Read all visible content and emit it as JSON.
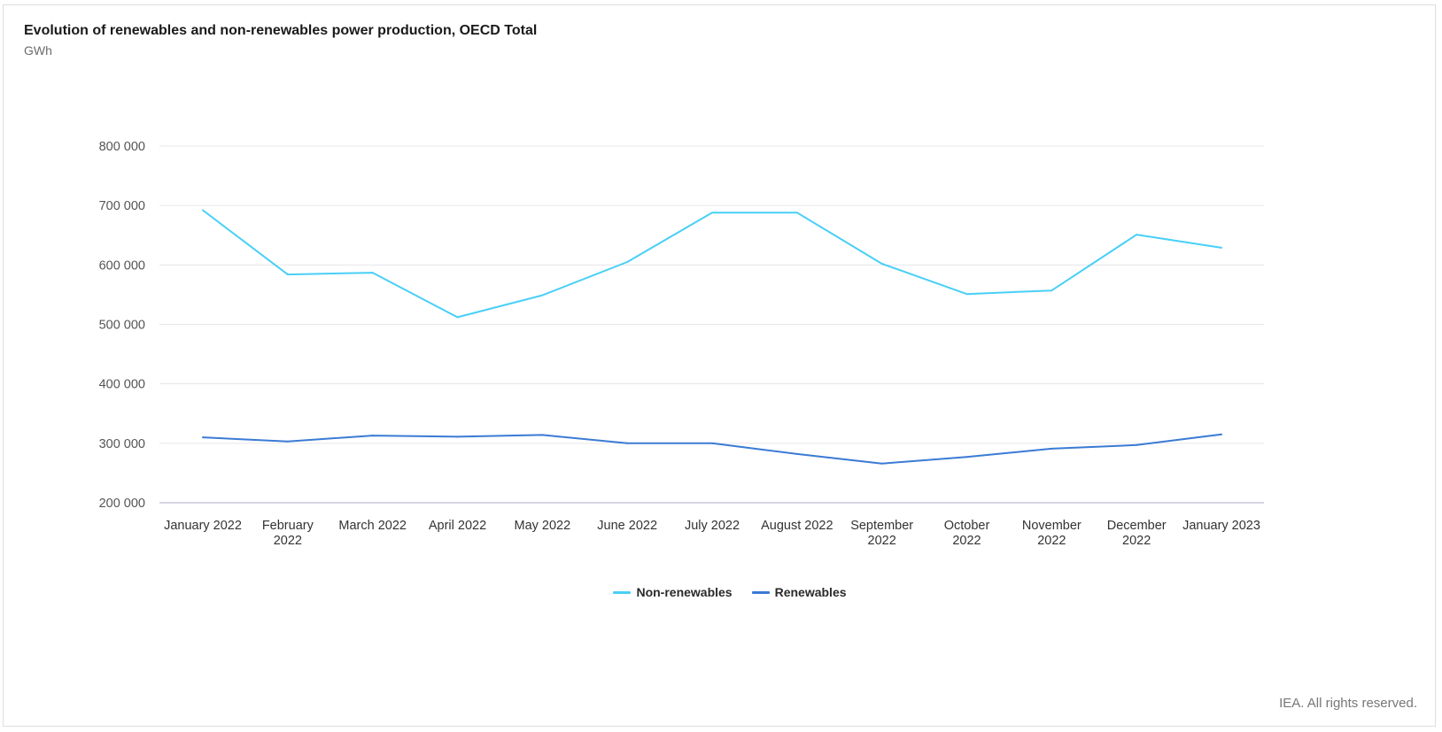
{
  "header": {
    "title": "Evolution of renewables and non-renewables power production, OECD Total",
    "unit": "GWh"
  },
  "credit": "IEA. All rights reserved.",
  "colors": {
    "non_renewables": "#49cff7",
    "renewables": "#3a7bd5",
    "grid": "#e6e6ea",
    "baseline": "#c9c9dd"
  },
  "chart_data": {
    "type": "line",
    "title": "Evolution of renewables and non-renewables power production, OECD Total",
    "ylabel": "GWh",
    "xlabel": "",
    "ylim": [
      200000,
      800000
    ],
    "yticks": [
      {
        "value": 800000,
        "label": "800 000"
      },
      {
        "value": 700000,
        "label": "700 000"
      },
      {
        "value": 600000,
        "label": "600 000"
      },
      {
        "value": 500000,
        "label": "500 000"
      },
      {
        "value": 400000,
        "label": "400 000"
      },
      {
        "value": 300000,
        "label": "300 000"
      },
      {
        "value": 200000,
        "label": "200 000"
      }
    ],
    "categories": [
      [
        "January 2022"
      ],
      [
        "February",
        "2022"
      ],
      [
        "March 2022"
      ],
      [
        "April 2022"
      ],
      [
        "May 2022"
      ],
      [
        "June 2022"
      ],
      [
        "July 2022"
      ],
      [
        "August 2022"
      ],
      [
        "September",
        "2022"
      ],
      [
        "October",
        "2022"
      ],
      [
        "November",
        "2022"
      ],
      [
        "December",
        "2022"
      ],
      [
        "January 2023"
      ]
    ],
    "series": [
      {
        "name": "Non-renewables",
        "color": "#49cff7",
        "values": [
          692000,
          584000,
          587000,
          512000,
          549000,
          605000,
          688000,
          688000,
          602000,
          551000,
          557000,
          651000,
          629000
        ]
      },
      {
        "name": "Renewables",
        "color": "#3a7bd5",
        "values": [
          310000,
          303000,
          313000,
          311000,
          314000,
          300000,
          300000,
          282000,
          266000,
          277000,
          291000,
          297000,
          315000
        ]
      }
    ],
    "legend_position": "bottom-center",
    "grid": true
  }
}
